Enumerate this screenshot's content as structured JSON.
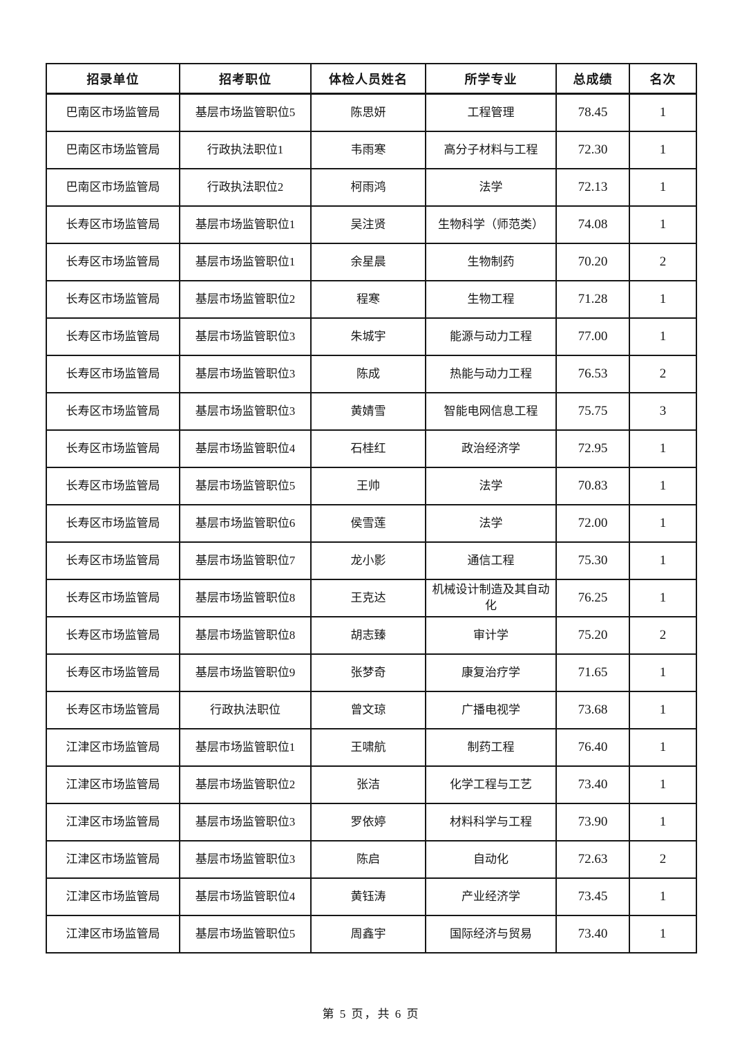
{
  "page": {
    "footer": "第 5 页，共 6 页"
  },
  "table": {
    "column_keys": [
      "unit",
      "position",
      "candidate-name",
      "major",
      "total-score",
      "rank"
    ],
    "headers": [
      "招录单位",
      "招考职位",
      "体检人员姓名",
      "所学专业",
      "总成绩",
      "名次"
    ],
    "rows": [
      [
        "巴南区市场监管局",
        "基层市场监管职位5",
        "陈思妍",
        "工程管理",
        "78.45",
        "1"
      ],
      [
        "巴南区市场监管局",
        "行政执法职位1",
        "韦雨寒",
        "高分子材料与工程",
        "72.30",
        "1"
      ],
      [
        "巴南区市场监管局",
        "行政执法职位2",
        "柯雨鸿",
        "法学",
        "72.13",
        "1"
      ],
      [
        "长寿区市场监管局",
        "基层市场监管职位1",
        "吴注贤",
        "生物科学（师范类）",
        "74.08",
        "1"
      ],
      [
        "长寿区市场监管局",
        "基层市场监管职位1",
        "余星晨",
        "生物制药",
        "70.20",
        "2"
      ],
      [
        "长寿区市场监管局",
        "基层市场监管职位2",
        "程寒",
        "生物工程",
        "71.28",
        "1"
      ],
      [
        "长寿区市场监管局",
        "基层市场监管职位3",
        "朱城宇",
        "能源与动力工程",
        "77.00",
        "1"
      ],
      [
        "长寿区市场监管局",
        "基层市场监管职位3",
        "陈成",
        "热能与动力工程",
        "76.53",
        "2"
      ],
      [
        "长寿区市场监管局",
        "基层市场监管职位3",
        "黄婧雪",
        "智能电网信息工程",
        "75.75",
        "3"
      ],
      [
        "长寿区市场监管局",
        "基层市场监管职位4",
        "石桂红",
        "政治经济学",
        "72.95",
        "1"
      ],
      [
        "长寿区市场监管局",
        "基层市场监管职位5",
        "王帅",
        "法学",
        "70.83",
        "1"
      ],
      [
        "长寿区市场监管局",
        "基层市场监管职位6",
        "侯雪莲",
        "法学",
        "72.00",
        "1"
      ],
      [
        "长寿区市场监管局",
        "基层市场监管职位7",
        "龙小影",
        "通信工程",
        "75.30",
        "1"
      ],
      [
        "长寿区市场监管局",
        "基层市场监管职位8",
        "王克达",
        "机械设计制造及其自动化",
        "76.25",
        "1"
      ],
      [
        "长寿区市场监管局",
        "基层市场监管职位8",
        "胡志臻",
        "审计学",
        "75.20",
        "2"
      ],
      [
        "长寿区市场监管局",
        "基层市场监管职位9",
        "张梦奇",
        "康复治疗学",
        "71.65",
        "1"
      ],
      [
        "长寿区市场监管局",
        "行政执法职位",
        "曾文琼",
        "广播电视学",
        "73.68",
        "1"
      ],
      [
        "江津区市场监管局",
        "基层市场监管职位1",
        "王啸航",
        "制药工程",
        "76.40",
        "1"
      ],
      [
        "江津区市场监管局",
        "基层市场监管职位2",
        "张洁",
        "化学工程与工艺",
        "73.40",
        "1"
      ],
      [
        "江津区市场监管局",
        "基层市场监管职位3",
        "罗依婷",
        "材料科学与工程",
        "73.90",
        "1"
      ],
      [
        "江津区市场监管局",
        "基层市场监管职位3",
        "陈启",
        "自动化",
        "72.63",
        "2"
      ],
      [
        "江津区市场监管局",
        "基层市场监管职位4",
        "黄钰涛",
        "产业经济学",
        "73.45",
        "1"
      ],
      [
        "江津区市场监管局",
        "基层市场监管职位5",
        "周鑫宇",
        "国际经济与贸易",
        "73.40",
        "1"
      ]
    ]
  }
}
